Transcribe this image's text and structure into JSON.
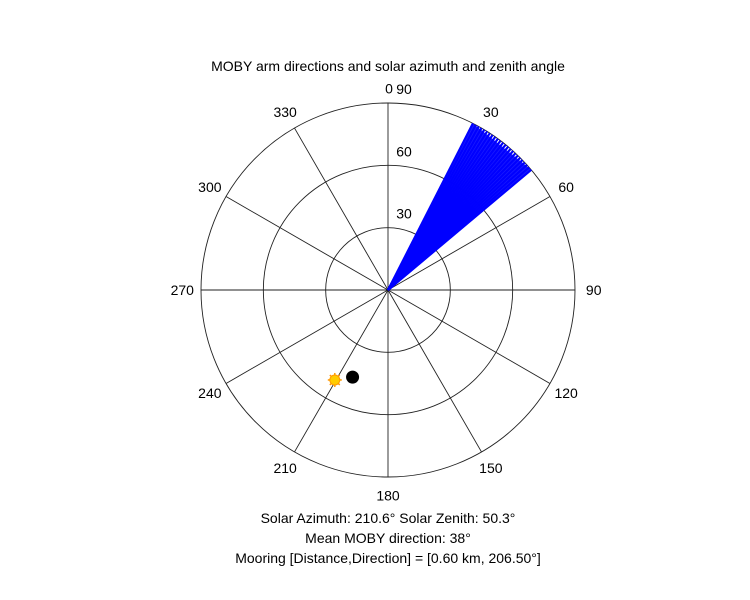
{
  "chart_data": {
    "type": "polar",
    "title": "MOBY arm directions and solar azimuth and zenith angle",
    "orientation": "clockwise-from-north",
    "r_ticks": [
      30,
      60,
      90
    ],
    "r_tick_labels": [
      "30",
      "60",
      "90"
    ],
    "r_max": 90,
    "theta_ticks": [
      0,
      30,
      60,
      90,
      120,
      150,
      180,
      210,
      240,
      270,
      300,
      330
    ],
    "theta_tick_labels": [
      "0",
      "30",
      "60",
      "90",
      "120",
      "150",
      "180",
      "210",
      "240",
      "270",
      "300",
      "330"
    ],
    "grid": true,
    "series": [
      {
        "kind": "arm-lines",
        "color": "#0000ff",
        "r": 90,
        "directions": [
          27,
          28,
          29,
          30,
          31,
          32,
          33,
          34,
          35,
          36,
          37,
          38,
          39,
          40,
          41,
          42,
          43,
          44,
          45,
          46,
          47,
          48,
          49,
          50
        ]
      },
      {
        "kind": "marker-sun",
        "color": "#ffcc00",
        "azimuth": 210.6,
        "zenith": 50.3
      },
      {
        "kind": "marker-mooring",
        "color": "#000000",
        "azimuth": 206.5,
        "zenith": 49
      }
    ]
  },
  "info": {
    "line1": "Solar Azimuth: 210.6°    Solar Zenith: 50.3°",
    "line2": "Mean MOBY direction: 38°",
    "line3": "Mooring [Distance,Direction] = [0.60 km, 206.50°]"
  }
}
